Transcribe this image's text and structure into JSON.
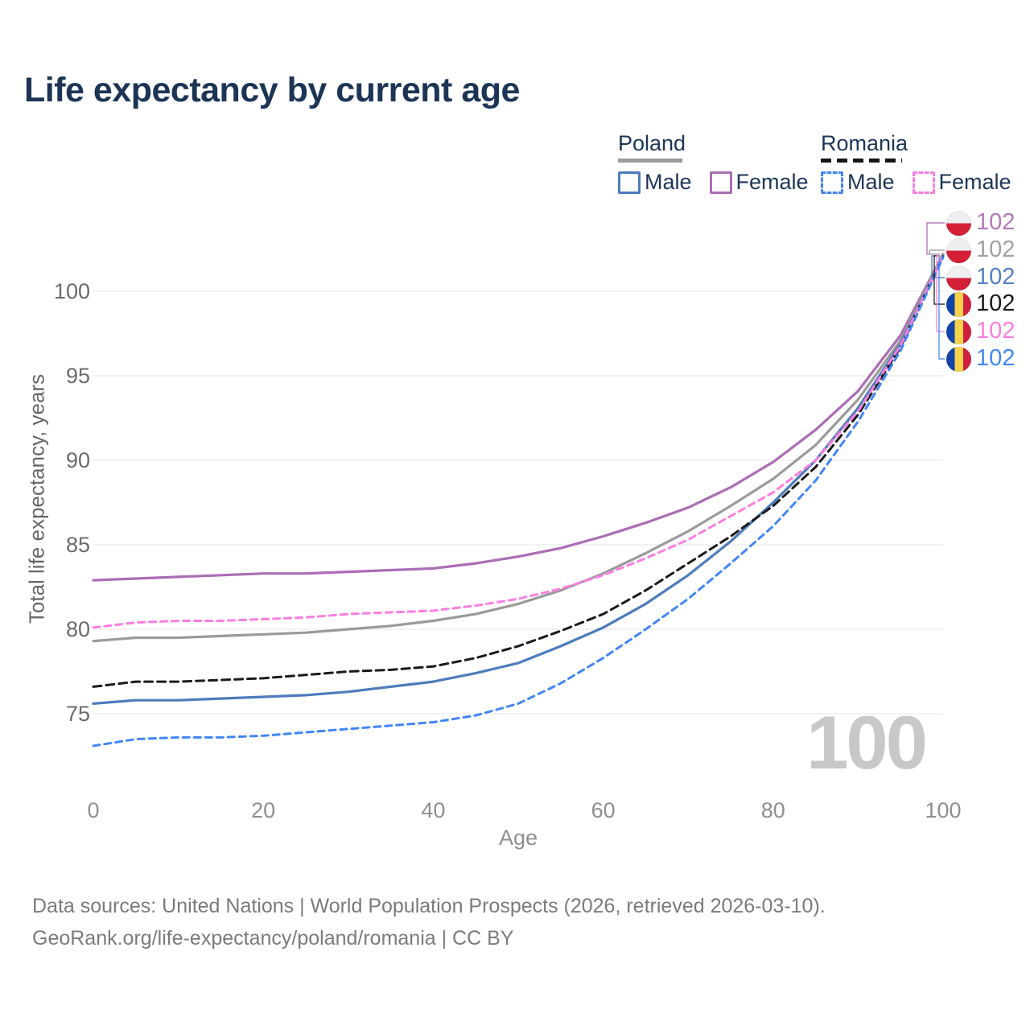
{
  "title": "Life expectancy by current age",
  "legend": {
    "poland": {
      "label": "Poland",
      "male": "Male",
      "female": "Female"
    },
    "romania": {
      "label": "Romania",
      "male": "Male",
      "female": "Female"
    }
  },
  "watermark": "100",
  "footer": {
    "line1": "Data sources: United Nations | World Population Prospects (2026, retrieved 2026-03-10).",
    "line2": "GeoRank.org/life-expectancy/poland/romania | CC BY"
  },
  "x_axis": {
    "title": "Age"
  },
  "y_axis": {
    "title": "Total life expectancy, years"
  },
  "colors": {
    "title_text": "#1c3556",
    "grid": "#e9e9e9",
    "poland_underline": "#9a9a9a",
    "romania_underline": "#161616",
    "watermark": "#c8c8c8"
  },
  "chart_data": {
    "type": "line",
    "title": "Life expectancy by current age",
    "xlabel": "Age",
    "ylabel": "Total life expectancy, years",
    "x_ticks": [
      0,
      20,
      40,
      60,
      80,
      100
    ],
    "y_ticks": [
      75,
      80,
      85,
      90,
      95,
      100
    ],
    "xlim": [
      0,
      100
    ],
    "ylim_drawn": [
      73,
      102.3
    ],
    "grid": "horizontal",
    "x": [
      0,
      5,
      10,
      15,
      20,
      25,
      30,
      35,
      40,
      45,
      50,
      55,
      60,
      65,
      70,
      75,
      80,
      85,
      90,
      95,
      100
    ],
    "series": [
      {
        "name": "Poland Female",
        "country": "poland",
        "sex": "female",
        "line": "solid",
        "color": "#ab6db5",
        "label_color": "#b476ba",
        "end_label": "102",
        "values": [
          82.9,
          83.0,
          83.1,
          83.2,
          83.3,
          83.3,
          83.4,
          83.5,
          83.6,
          83.9,
          84.3,
          84.8,
          85.5,
          86.3,
          87.2,
          88.4,
          89.9,
          91.8,
          94.1,
          97.4,
          102.2
        ]
      },
      {
        "name": "Poland Both sexes",
        "country": "poland",
        "sex": "both",
        "line": "solid",
        "color": "#9a9a9a",
        "label_color": "#a0a0a0",
        "end_label": "102",
        "values": [
          79.3,
          79.5,
          79.5,
          79.6,
          79.7,
          79.8,
          80.0,
          80.2,
          80.5,
          80.9,
          81.5,
          82.3,
          83.3,
          84.5,
          85.8,
          87.3,
          88.9,
          90.9,
          93.6,
          97.1,
          102.2
        ]
      },
      {
        "name": "Poland Male",
        "country": "poland",
        "sex": "male",
        "line": "solid",
        "color": "#4d7cbb",
        "label_color": "#5580c0",
        "end_label": "102",
        "values": [
          75.6,
          75.8,
          75.8,
          75.9,
          76.0,
          76.1,
          76.3,
          76.6,
          76.9,
          77.4,
          78.0,
          79.0,
          80.1,
          81.5,
          83.2,
          85.2,
          87.5,
          90.0,
          93.1,
          96.9,
          102.1
        ]
      },
      {
        "name": "Romania Both sexes",
        "country": "romania",
        "sex": "both",
        "line": "dashed",
        "color": "#1a1a1a",
        "label_color": "#1a1a1a",
        "end_label": "102",
        "values": [
          76.6,
          76.9,
          76.9,
          77.0,
          77.1,
          77.3,
          77.5,
          77.6,
          77.8,
          78.3,
          79.0,
          79.9,
          80.9,
          82.3,
          83.9,
          85.5,
          87.3,
          89.6,
          92.7,
          96.7,
          102.1
        ]
      },
      {
        "name": "Romania Female",
        "country": "romania",
        "sex": "female",
        "line": "dashed",
        "color": "#fb7ee0",
        "label_color": "#fb7ee0",
        "end_label": "102",
        "values": [
          80.1,
          80.4,
          80.5,
          80.5,
          80.6,
          80.7,
          80.9,
          81.0,
          81.1,
          81.4,
          81.8,
          82.4,
          83.2,
          84.2,
          85.3,
          86.7,
          88.1,
          90.0,
          92.9,
          96.8,
          102.1
        ]
      },
      {
        "name": "Romania Male",
        "country": "romania",
        "sex": "male",
        "line": "dashed",
        "color": "#4286f5",
        "label_color": "#4286f5",
        "end_label": "102",
        "values": [
          73.1,
          73.5,
          73.6,
          73.6,
          73.7,
          73.9,
          74.1,
          74.3,
          74.5,
          74.9,
          75.6,
          76.8,
          78.3,
          80.0,
          81.8,
          83.9,
          86.1,
          88.8,
          92.3,
          96.5,
          102.0
        ]
      }
    ]
  }
}
